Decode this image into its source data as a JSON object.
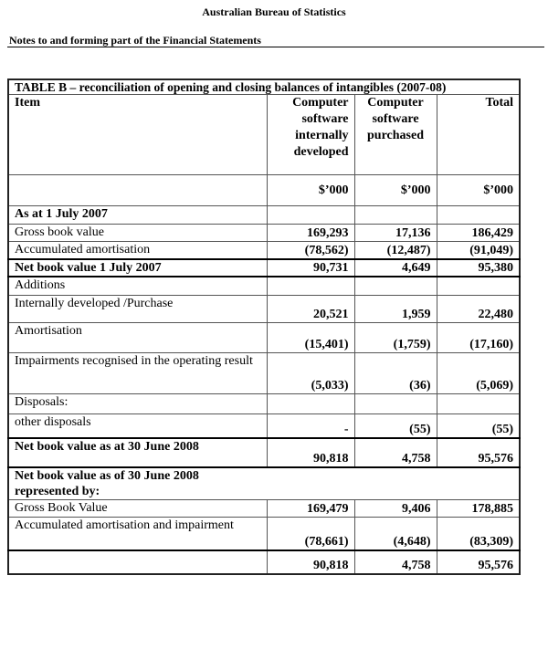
{
  "header": {
    "organisation": "Australian Bureau of Statistics",
    "section": "Notes to and forming part of the Financial Statements"
  },
  "table": {
    "title": "TABLE B – reconciliation of opening and closing balances of intangibles (2007-08)",
    "columns": [
      "Item",
      "Computer software internally developed",
      "Computer software purchased",
      "Total"
    ],
    "units": [
      "",
      "$’000",
      "$’000",
      "$’000"
    ],
    "rows": [
      {
        "label": "As at 1 July 2007",
        "values": [
          "",
          "",
          ""
        ]
      },
      {
        "label": "Gross book value",
        "values": [
          "169,293",
          "17,136",
          "186,429"
        ]
      },
      {
        "label": "Accumulated amortisation",
        "values": [
          "(78,562)",
          "(12,487)",
          "(91,049)"
        ]
      },
      {
        "label": "Net book value 1 July 2007",
        "values": [
          "90,731",
          "4,649",
          "95,380"
        ]
      },
      {
        "label": "Additions",
        "values": [
          "",
          "",
          ""
        ]
      },
      {
        "label": "Internally developed /Purchase",
        "values": [
          "20,521",
          "1,959",
          "22,480"
        ]
      },
      {
        "label": "Amortisation",
        "values": [
          "(15,401)",
          "(1,759)",
          "(17,160)"
        ]
      },
      {
        "label": "Impairments recognised in the operating result",
        "values": [
          "(5,033)",
          "(36)",
          "(5,069)"
        ]
      },
      {
        "label": "Disposals:",
        "values": [
          "",
          "",
          ""
        ]
      },
      {
        "label": "other disposals",
        "values": [
          "-",
          "(55)",
          "(55)"
        ]
      },
      {
        "label": "Net book value as at 30 June 2008",
        "values": [
          "90,818",
          "4,758",
          "95,576"
        ]
      },
      {
        "label": "Net book value as of 30 June 2008 represented by:",
        "values": []
      },
      {
        "label": "Gross Book Value",
        "values": [
          "169,479",
          "9,406",
          "178,885"
        ]
      },
      {
        "label": "Accumulated amortisation and impairment",
        "values": [
          "(78,661)",
          "(4,648)",
          "(83,309)"
        ]
      },
      {
        "label": "",
        "values": [
          "90,818",
          "4,758",
          "95,576"
        ]
      }
    ]
  }
}
